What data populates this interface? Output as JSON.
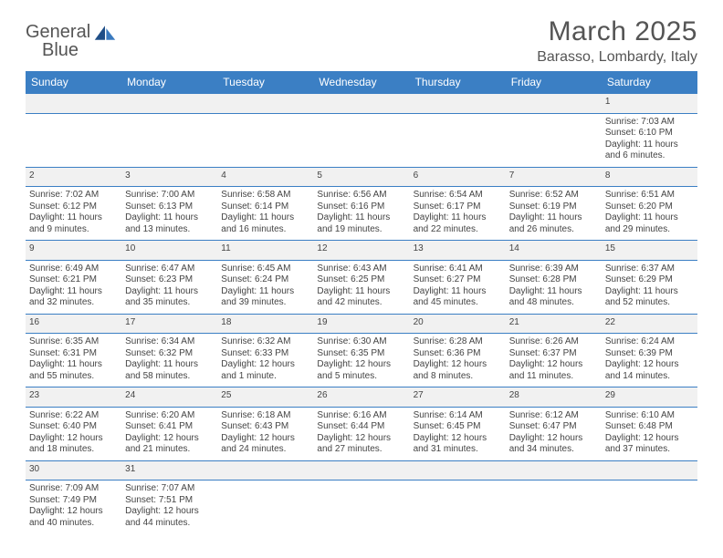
{
  "logo": {
    "text1": "General",
    "text2": "Blue"
  },
  "title": "March 2025",
  "location": "Barasso, Lombardy, Italy",
  "colors": {
    "header_bg": "#3b7fc4",
    "header_fg": "#ffffff",
    "row_alt_bg": "#f1f1f1",
    "border": "#3b7fc4",
    "text": "#444444",
    "title_color": "#555555"
  },
  "weekdays": [
    "Sunday",
    "Monday",
    "Tuesday",
    "Wednesday",
    "Thursday",
    "Friday",
    "Saturday"
  ],
  "weeks": [
    [
      null,
      null,
      null,
      null,
      null,
      null,
      {
        "n": "1",
        "sunrise": "7:03 AM",
        "sunset": "6:10 PM",
        "daylight": "11 hours and 6 minutes."
      }
    ],
    [
      {
        "n": "2",
        "sunrise": "7:02 AM",
        "sunset": "6:12 PM",
        "daylight": "11 hours and 9 minutes."
      },
      {
        "n": "3",
        "sunrise": "7:00 AM",
        "sunset": "6:13 PM",
        "daylight": "11 hours and 13 minutes."
      },
      {
        "n": "4",
        "sunrise": "6:58 AM",
        "sunset": "6:14 PM",
        "daylight": "11 hours and 16 minutes."
      },
      {
        "n": "5",
        "sunrise": "6:56 AM",
        "sunset": "6:16 PM",
        "daylight": "11 hours and 19 minutes."
      },
      {
        "n": "6",
        "sunrise": "6:54 AM",
        "sunset": "6:17 PM",
        "daylight": "11 hours and 22 minutes."
      },
      {
        "n": "7",
        "sunrise": "6:52 AM",
        "sunset": "6:19 PM",
        "daylight": "11 hours and 26 minutes."
      },
      {
        "n": "8",
        "sunrise": "6:51 AM",
        "sunset": "6:20 PM",
        "daylight": "11 hours and 29 minutes."
      }
    ],
    [
      {
        "n": "9",
        "sunrise": "6:49 AM",
        "sunset": "6:21 PM",
        "daylight": "11 hours and 32 minutes."
      },
      {
        "n": "10",
        "sunrise": "6:47 AM",
        "sunset": "6:23 PM",
        "daylight": "11 hours and 35 minutes."
      },
      {
        "n": "11",
        "sunrise": "6:45 AM",
        "sunset": "6:24 PM",
        "daylight": "11 hours and 39 minutes."
      },
      {
        "n": "12",
        "sunrise": "6:43 AM",
        "sunset": "6:25 PM",
        "daylight": "11 hours and 42 minutes."
      },
      {
        "n": "13",
        "sunrise": "6:41 AM",
        "sunset": "6:27 PM",
        "daylight": "11 hours and 45 minutes."
      },
      {
        "n": "14",
        "sunrise": "6:39 AM",
        "sunset": "6:28 PM",
        "daylight": "11 hours and 48 minutes."
      },
      {
        "n": "15",
        "sunrise": "6:37 AM",
        "sunset": "6:29 PM",
        "daylight": "11 hours and 52 minutes."
      }
    ],
    [
      {
        "n": "16",
        "sunrise": "6:35 AM",
        "sunset": "6:31 PM",
        "daylight": "11 hours and 55 minutes."
      },
      {
        "n": "17",
        "sunrise": "6:34 AM",
        "sunset": "6:32 PM",
        "daylight": "11 hours and 58 minutes."
      },
      {
        "n": "18",
        "sunrise": "6:32 AM",
        "sunset": "6:33 PM",
        "daylight": "12 hours and 1 minute."
      },
      {
        "n": "19",
        "sunrise": "6:30 AM",
        "sunset": "6:35 PM",
        "daylight": "12 hours and 5 minutes."
      },
      {
        "n": "20",
        "sunrise": "6:28 AM",
        "sunset": "6:36 PM",
        "daylight": "12 hours and 8 minutes."
      },
      {
        "n": "21",
        "sunrise": "6:26 AM",
        "sunset": "6:37 PM",
        "daylight": "12 hours and 11 minutes."
      },
      {
        "n": "22",
        "sunrise": "6:24 AM",
        "sunset": "6:39 PM",
        "daylight": "12 hours and 14 minutes."
      }
    ],
    [
      {
        "n": "23",
        "sunrise": "6:22 AM",
        "sunset": "6:40 PM",
        "daylight": "12 hours and 18 minutes."
      },
      {
        "n": "24",
        "sunrise": "6:20 AM",
        "sunset": "6:41 PM",
        "daylight": "12 hours and 21 minutes."
      },
      {
        "n": "25",
        "sunrise": "6:18 AM",
        "sunset": "6:43 PM",
        "daylight": "12 hours and 24 minutes."
      },
      {
        "n": "26",
        "sunrise": "6:16 AM",
        "sunset": "6:44 PM",
        "daylight": "12 hours and 27 minutes."
      },
      {
        "n": "27",
        "sunrise": "6:14 AM",
        "sunset": "6:45 PM",
        "daylight": "12 hours and 31 minutes."
      },
      {
        "n": "28",
        "sunrise": "6:12 AM",
        "sunset": "6:47 PM",
        "daylight": "12 hours and 34 minutes."
      },
      {
        "n": "29",
        "sunrise": "6:10 AM",
        "sunset": "6:48 PM",
        "daylight": "12 hours and 37 minutes."
      }
    ],
    [
      {
        "n": "30",
        "sunrise": "7:09 AM",
        "sunset": "7:49 PM",
        "daylight": "12 hours and 40 minutes."
      },
      {
        "n": "31",
        "sunrise": "7:07 AM",
        "sunset": "7:51 PM",
        "daylight": "12 hours and 44 minutes."
      },
      null,
      null,
      null,
      null,
      null
    ]
  ],
  "labels": {
    "sunrise": "Sunrise: ",
    "sunset": "Sunset: ",
    "daylight": "Daylight: "
  }
}
